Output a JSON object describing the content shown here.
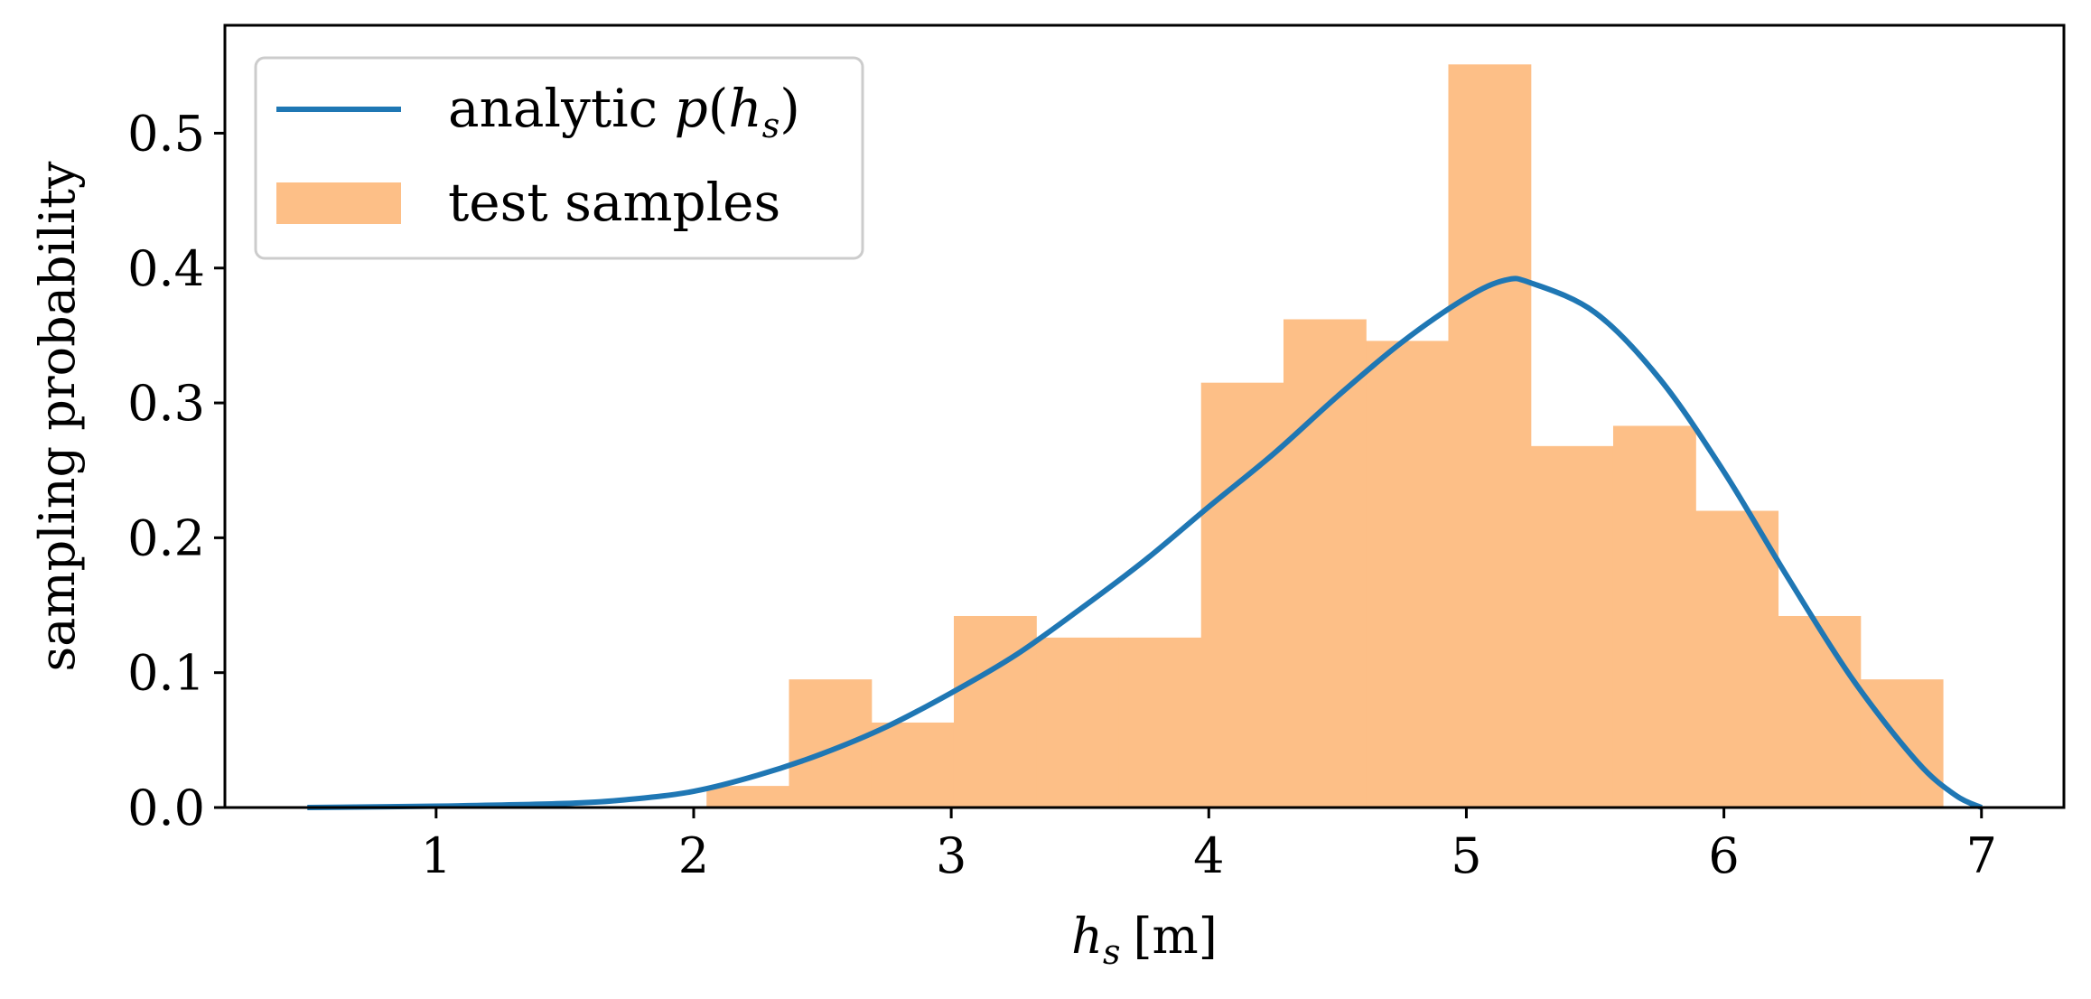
{
  "chart_data": {
    "type": "bar",
    "xlabel": {
      "var": "h",
      "sub": "s",
      "unit": "[m]"
    },
    "ylabel": "sampling probability",
    "xlim": [
      0.18,
      7.32
    ],
    "ylim": [
      0.0,
      0.58
    ],
    "xticks": [
      1,
      2,
      3,
      4,
      5,
      6,
      7
    ],
    "yticks": [
      0.0,
      0.1,
      0.2,
      0.3,
      0.4,
      0.5
    ],
    "ytick_labels": [
      "0.0",
      "0.1",
      "0.2",
      "0.3",
      "0.4",
      "0.5"
    ],
    "grid": false,
    "legend": {
      "placement": "top-left",
      "entries": [
        {
          "kind": "line",
          "text": "analytic ",
          "math": {
            "fn": "p",
            "var": "h",
            "sub": "s"
          }
        },
        {
          "kind": "patch",
          "text": "test samples"
        }
      ]
    },
    "series": [
      {
        "name": "test samples",
        "kind": "histogram",
        "color": "#fdbf87",
        "bins": [
          {
            "x0": 2.05,
            "x1": 2.37,
            "value": 0.016
          },
          {
            "x0": 2.37,
            "x1": 2.69,
            "value": 0.095
          },
          {
            "x0": 2.69,
            "x1": 3.01,
            "value": 0.063
          },
          {
            "x0": 3.01,
            "x1": 3.33,
            "value": 0.142
          },
          {
            "x0": 3.33,
            "x1": 3.65,
            "value": 0.126
          },
          {
            "x0": 3.65,
            "x1": 3.97,
            "value": 0.126
          },
          {
            "x0": 3.97,
            "x1": 4.29,
            "value": 0.315
          },
          {
            "x0": 4.29,
            "x1": 4.61,
            "value": 0.362
          },
          {
            "x0": 4.61,
            "x1": 4.93,
            "value": 0.346
          },
          {
            "x0": 4.93,
            "x1": 5.25,
            "value": 0.551
          },
          {
            "x0": 5.25,
            "x1": 5.57,
            "value": 0.268
          },
          {
            "x0": 5.57,
            "x1": 5.89,
            "value": 0.283
          },
          {
            "x0": 5.89,
            "x1": 6.21,
            "value": 0.22
          },
          {
            "x0": 6.21,
            "x1": 6.53,
            "value": 0.142
          },
          {
            "x0": 6.53,
            "x1": 6.85,
            "value": 0.095
          }
        ]
      },
      {
        "name": "analytic p(h_s)",
        "kind": "line",
        "color": "#1f77b4",
        "x": [
          0.5,
          1.0,
          1.5,
          1.75,
          2.0,
          2.25,
          2.5,
          2.75,
          3.0,
          3.25,
          3.5,
          3.75,
          4.0,
          4.25,
          4.5,
          4.75,
          5.0,
          5.15,
          5.25,
          5.5,
          5.75,
          6.0,
          6.25,
          6.5,
          6.75,
          6.9,
          7.0
        ],
        "y": [
          0.0,
          0.001,
          0.003,
          0.006,
          0.012,
          0.024,
          0.04,
          0.06,
          0.085,
          0.113,
          0.147,
          0.183,
          0.223,
          0.262,
          0.305,
          0.345,
          0.378,
          0.391,
          0.389,
          0.367,
          0.318,
          0.249,
          0.17,
          0.095,
          0.034,
          0.009,
          0.0
        ]
      }
    ]
  }
}
